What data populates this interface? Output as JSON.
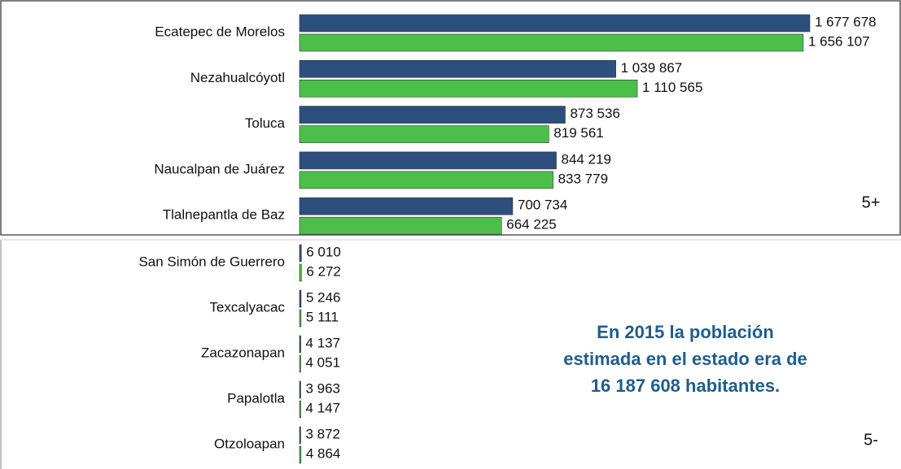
{
  "chart_data": [
    {
      "type": "bar",
      "orientation": "horizontal",
      "label": "5+",
      "categories": [
        "Ecatepec de Morelos",
        "Nezahualcóyotl",
        "Toluca",
        "Naucalpan de Juárez",
        "Tlalnepantla de Baz"
      ],
      "series": [
        {
          "color": "#2d4f7e",
          "values": [
            1677678,
            1039867,
            873536,
            844219,
            700734
          ],
          "value_labels": [
            "1 677 678",
            "1 039 867",
            "873 536",
            "844 219",
            "700 734"
          ]
        },
        {
          "color": "#4cbf4a",
          "values": [
            1656107,
            1110565,
            819561,
            833779,
            664225
          ],
          "value_labels": [
            "1 656 107",
            "1 110 565",
            "819 561",
            "833 779",
            "664 225"
          ]
        }
      ]
    },
    {
      "type": "bar",
      "orientation": "horizontal",
      "label": "5-",
      "note": [
        "En 2015 la población",
        "estimada en el estado era de",
        "16 187 608 habitantes."
      ],
      "categories": [
        "San Simón de Guerrero",
        "Texcalyacac",
        "Zacazonapan",
        "Papalotla",
        "Otzoloapan"
      ],
      "series": [
        {
          "color": "#2d4f7e",
          "values": [
            6010,
            5246,
            4137,
            3963,
            3872
          ],
          "value_labels": [
            "6 010",
            "5 246",
            "4 137",
            "3 963",
            "3 872"
          ]
        },
        {
          "color": "#4cbf4a",
          "values": [
            6272,
            5111,
            4051,
            4147,
            4864
          ],
          "value_labels": [
            "6 272",
            "5 111",
            "4 051",
            "4 147",
            "4 864"
          ]
        }
      ]
    }
  ]
}
